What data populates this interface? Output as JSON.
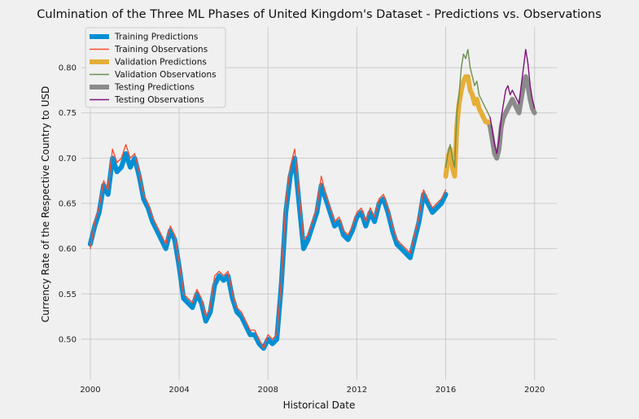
{
  "chart_data": {
    "type": "line",
    "title": "Culmination of the Three ML Phases of United Kingdom's Dataset - Predictions vs. Observations",
    "xlabel": "Historical Date",
    "ylabel": "Currency Rate of the Respective Country to USD",
    "xlim": [
      1999.6,
      2021.0
    ],
    "ylim": [
      0.455,
      0.845
    ],
    "x_ticks": [
      2000,
      2004,
      2008,
      2012,
      2016,
      2020
    ],
    "y_ticks": [
      0.5,
      0.55,
      0.6,
      0.65,
      0.7,
      0.75,
      0.8
    ],
    "x_tick_labels": [
      "2000",
      "2004",
      "2008",
      "2012",
      "2016",
      "2020"
    ],
    "y_tick_labels": [
      "0.50",
      "0.55",
      "0.60",
      "0.65",
      "0.70",
      "0.75",
      "0.80"
    ],
    "grid": true,
    "legend_position": "upper-left",
    "series": [
      {
        "name": "Training Predictions",
        "color": "#008fd5",
        "x": [
          2000.0,
          2000.2,
          2000.4,
          2000.6,
          2000.8,
          2001.0,
          2001.2,
          2001.4,
          2001.6,
          2001.8,
          2002.0,
          2002.2,
          2002.4,
          2002.6,
          2002.8,
          2003.0,
          2003.2,
          2003.4,
          2003.6,
          2003.8,
          2004.0,
          2004.2,
          2004.4,
          2004.6,
          2004.8,
          2005.0,
          2005.2,
          2005.4,
          2005.6,
          2005.8,
          2006.0,
          2006.2,
          2006.4,
          2006.6,
          2006.8,
          2007.0,
          2007.2,
          2007.4,
          2007.6,
          2007.8,
          2008.0,
          2008.2,
          2008.4,
          2008.6,
          2008.8,
          2009.0,
          2009.2,
          2009.4,
          2009.6,
          2009.8,
          2010.0,
          2010.2,
          2010.4,
          2010.6,
          2010.8,
          2011.0,
          2011.2,
          2011.4,
          2011.6,
          2011.8,
          2012.0,
          2012.2,
          2012.4,
          2012.6,
          2012.8,
          2013.0,
          2013.2,
          2013.4,
          2013.6,
          2013.8,
          2014.0,
          2014.2,
          2014.4,
          2014.6,
          2014.8,
          2015.0,
          2015.2,
          2015.4,
          2015.6,
          2015.8,
          2016.0
        ],
        "y": [
          0.605,
          0.625,
          0.64,
          0.67,
          0.66,
          0.7,
          0.685,
          0.69,
          0.705,
          0.69,
          0.7,
          0.68,
          0.655,
          0.645,
          0.63,
          0.62,
          0.61,
          0.6,
          0.62,
          0.61,
          0.58,
          0.545,
          0.54,
          0.535,
          0.55,
          0.54,
          0.52,
          0.53,
          0.56,
          0.57,
          0.565,
          0.57,
          0.545,
          0.53,
          0.525,
          0.515,
          0.505,
          0.505,
          0.495,
          0.49,
          0.5,
          0.495,
          0.5,
          0.56,
          0.64,
          0.68,
          0.7,
          0.65,
          0.6,
          0.61,
          0.625,
          0.64,
          0.67,
          0.655,
          0.64,
          0.625,
          0.63,
          0.615,
          0.61,
          0.62,
          0.635,
          0.64,
          0.625,
          0.64,
          0.63,
          0.65,
          0.655,
          0.64,
          0.62,
          0.605,
          0.6,
          0.595,
          0.59,
          0.61,
          0.63,
          0.66,
          0.65,
          0.64,
          0.645,
          0.65,
          0.66
        ]
      },
      {
        "name": "Training Observations",
        "color": "#fc4f30",
        "x": [
          2000.0,
          2000.2,
          2000.4,
          2000.6,
          2000.8,
          2001.0,
          2001.2,
          2001.4,
          2001.6,
          2001.8,
          2002.0,
          2002.2,
          2002.4,
          2002.6,
          2002.8,
          2003.0,
          2003.2,
          2003.4,
          2003.6,
          2003.8,
          2004.0,
          2004.2,
          2004.4,
          2004.6,
          2004.8,
          2005.0,
          2005.2,
          2005.4,
          2005.6,
          2005.8,
          2006.0,
          2006.2,
          2006.4,
          2006.6,
          2006.8,
          2007.0,
          2007.2,
          2007.4,
          2007.6,
          2007.8,
          2008.0,
          2008.2,
          2008.4,
          2008.6,
          2008.8,
          2009.0,
          2009.2,
          2009.4,
          2009.6,
          2009.8,
          2010.0,
          2010.2,
          2010.4,
          2010.6,
          2010.8,
          2011.0,
          2011.2,
          2011.4,
          2011.6,
          2011.8,
          2012.0,
          2012.2,
          2012.4,
          2012.6,
          2012.8,
          2013.0,
          2013.2,
          2013.4,
          2013.6,
          2013.8,
          2014.0,
          2014.2,
          2014.4,
          2014.6,
          2014.8,
          2015.0,
          2015.2,
          2015.4,
          2015.6,
          2015.8,
          2016.0
        ],
        "y": [
          0.6,
          0.63,
          0.645,
          0.675,
          0.665,
          0.71,
          0.695,
          0.7,
          0.715,
          0.7,
          0.705,
          0.685,
          0.66,
          0.65,
          0.635,
          0.625,
          0.615,
          0.605,
          0.625,
          0.615,
          0.585,
          0.55,
          0.545,
          0.54,
          0.555,
          0.545,
          0.525,
          0.535,
          0.57,
          0.575,
          0.57,
          0.575,
          0.55,
          0.535,
          0.53,
          0.52,
          0.51,
          0.51,
          0.5,
          0.49,
          0.505,
          0.5,
          0.505,
          0.565,
          0.65,
          0.69,
          0.71,
          0.66,
          0.61,
          0.615,
          0.63,
          0.645,
          0.68,
          0.66,
          0.645,
          0.63,
          0.635,
          0.62,
          0.615,
          0.625,
          0.64,
          0.645,
          0.63,
          0.645,
          0.635,
          0.655,
          0.66,
          0.645,
          0.625,
          0.61,
          0.605,
          0.6,
          0.595,
          0.615,
          0.635,
          0.665,
          0.655,
          0.645,
          0.65,
          0.655,
          0.665
        ]
      },
      {
        "name": "Validation Predictions",
        "color": "#e5ae38",
        "x": [
          2016.0,
          2016.1,
          2016.2,
          2016.3,
          2016.4,
          2016.5,
          2016.6,
          2016.7,
          2016.8,
          2016.9,
          2017.0,
          2017.1,
          2017.2,
          2017.3,
          2017.4,
          2017.5,
          2017.6,
          2017.7,
          2017.8,
          2017.9,
          2018.0
        ],
        "y": [
          0.68,
          0.7,
          0.71,
          0.69,
          0.68,
          0.735,
          0.76,
          0.775,
          0.785,
          0.79,
          0.79,
          0.775,
          0.77,
          0.76,
          0.765,
          0.755,
          0.75,
          0.745,
          0.74,
          0.74,
          0.735
        ]
      },
      {
        "name": "Validation Observations",
        "color": "#6d904f",
        "x": [
          2016.0,
          2016.1,
          2016.2,
          2016.3,
          2016.4,
          2016.5,
          2016.6,
          2016.7,
          2016.8,
          2016.9,
          2017.0,
          2017.1,
          2017.2,
          2017.3,
          2017.4,
          2017.5,
          2017.6,
          2017.7,
          2017.8,
          2017.9,
          2018.0
        ],
        "y": [
          0.69,
          0.705,
          0.715,
          0.7,
          0.69,
          0.75,
          0.77,
          0.8,
          0.815,
          0.81,
          0.82,
          0.8,
          0.79,
          0.78,
          0.785,
          0.77,
          0.765,
          0.76,
          0.755,
          0.75,
          0.745
        ]
      },
      {
        "name": "Testing Predictions",
        "color": "#8b8b8b",
        "x": [
          2018.0,
          2018.1,
          2018.2,
          2018.3,
          2018.4,
          2018.5,
          2018.6,
          2018.7,
          2018.8,
          2018.9,
          2019.0,
          2019.1,
          2019.2,
          2019.3,
          2019.4,
          2019.5,
          2019.6,
          2019.7,
          2019.8,
          2019.9,
          2020.0
        ],
        "y": [
          0.735,
          0.72,
          0.705,
          0.7,
          0.71,
          0.735,
          0.745,
          0.75,
          0.755,
          0.76,
          0.765,
          0.76,
          0.755,
          0.75,
          0.765,
          0.78,
          0.79,
          0.78,
          0.765,
          0.755,
          0.75
        ]
      },
      {
        "name": "Testing Observations",
        "color": "#810f7c",
        "x": [
          2018.0,
          2018.1,
          2018.2,
          2018.3,
          2018.4,
          2018.5,
          2018.6,
          2018.7,
          2018.8,
          2018.9,
          2019.0,
          2019.1,
          2019.2,
          2019.3,
          2019.4,
          2019.5,
          2019.6,
          2019.7,
          2019.8,
          2019.9,
          2020.0
        ],
        "y": [
          0.745,
          0.73,
          0.715,
          0.705,
          0.72,
          0.745,
          0.76,
          0.775,
          0.78,
          0.77,
          0.775,
          0.77,
          0.765,
          0.76,
          0.78,
          0.8,
          0.82,
          0.805,
          0.78,
          0.765,
          0.755
        ]
      }
    ]
  }
}
